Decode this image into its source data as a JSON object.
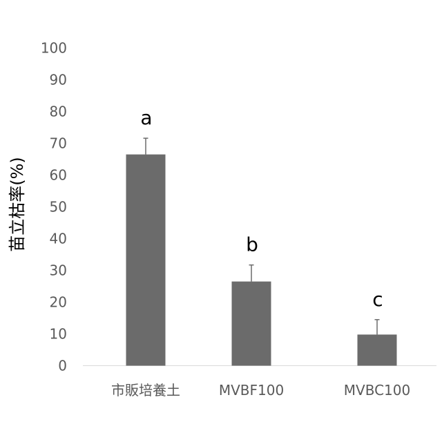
{
  "chart_data": {
    "type": "bar",
    "ylabel": "苗立枯率(%)",
    "xlabel": "",
    "ylim": [
      0,
      100
    ],
    "yticks": [
      0,
      10,
      20,
      30,
      40,
      50,
      60,
      70,
      80,
      90,
      100
    ],
    "grid": false,
    "categories": [
      "市販培養土",
      "MVBF100",
      "MVBC100"
    ],
    "values": [
      66.5,
      26.5,
      9.8
    ],
    "error": [
      5.1,
      5.2,
      4.7
    ],
    "significance_labels": [
      "a",
      "b",
      "c"
    ],
    "colors": {
      "bar": "#6b6b6b",
      "error_bar": "#6b6b6b",
      "axis": "#d9d9d9",
      "tick_text": "#595959",
      "title_text": "#000000"
    }
  }
}
